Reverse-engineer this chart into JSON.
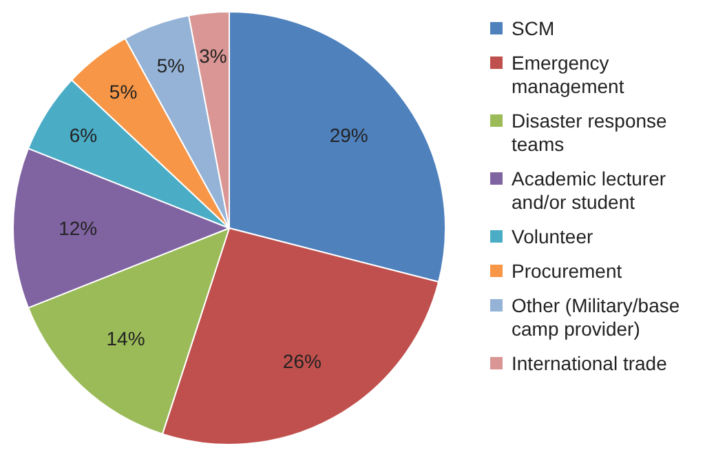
{
  "chart_data": {
    "type": "pie",
    "categories": [
      "SCM",
      "Emergency management",
      "Disaster response teams",
      "Academic lecturer and/or student",
      "Volunteer",
      "Procurement",
      "Other (Military/base camp provider)",
      "International trade"
    ],
    "values": [
      29,
      26,
      14,
      12,
      6,
      5,
      5,
      3
    ],
    "value_labels": [
      "29%",
      "26%",
      "14%",
      "12%",
      "6%",
      "5%",
      "5%",
      "3%"
    ],
    "colors": [
      "#4f81bd",
      "#c0504d",
      "#9bbb59",
      "#8064a2",
      "#4bacc6",
      "#f79646",
      "#95b3d7",
      "#d99694"
    ],
    "legend": "right"
  }
}
